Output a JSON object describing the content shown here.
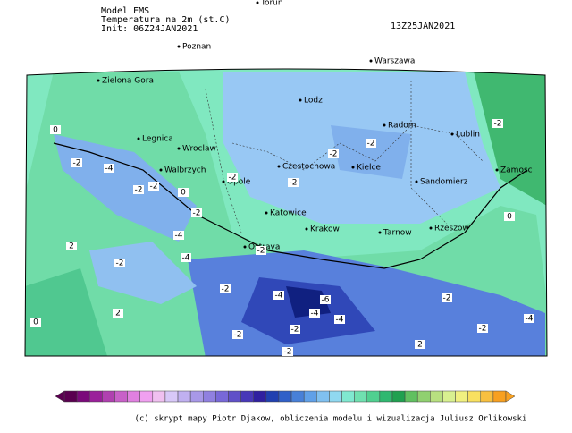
{
  "header": {
    "model": "Model EMS",
    "field": "Temperatura na 2m (st.C)",
    "init": "Init: 06Z24JAN2021",
    "valid": "13Z25JAN2021"
  },
  "cities": [
    "Torun",
    "Poznan",
    "Warszawa",
    "Zielona Gora",
    "Lodz",
    "Radom",
    "Lublin",
    "Legnica",
    "Wroclaw",
    "Walbrzych",
    "Opole",
    "Czestochowa",
    "Kielce",
    "Sandomierz",
    "Zamosc",
    "Krakow",
    "Tarnow",
    "Rzeszow",
    "Ostrava",
    "Katowice"
  ],
  "contour_labels": [
    0,
    -2,
    -4,
    -2,
    -2,
    -4,
    -2,
    0,
    -2,
    -2,
    -2,
    -2,
    -4,
    -4,
    -6,
    -4,
    -4,
    -2,
    -2,
    -2,
    -2,
    2,
    2,
    0,
    2,
    -2,
    -2,
    -4,
    -2,
    0,
    -2,
    -2
  ],
  "colorbar": {
    "colors": [
      "#5a0050",
      "#7a0a7a",
      "#9a209a",
      "#b040b0",
      "#c860c8",
      "#e080e0",
      "#f0a0f0",
      "#f0c0f0",
      "#d8c8f8",
      "#c0b0f0",
      "#a898e8",
      "#9080e0",
      "#7868d8",
      "#6050c8",
      "#4838b8",
      "#3020a0",
      "#2040b0",
      "#3060c8",
      "#4880d8",
      "#60a0e8",
      "#80c0f0",
      "#90d8f0",
      "#80e8d0",
      "#70e0b0",
      "#50d090",
      "#30b870",
      "#20a050",
      "#60c060",
      "#90d070",
      "#b8e080",
      "#d8f090",
      "#f0f080",
      "#f8e060",
      "#f8c040",
      "#f8a020"
    ]
  },
  "credit": "(c) skrypt mapy Piotr Djakow, obliczenia modelu i wizualizacja Juliusz Orlikowski"
}
